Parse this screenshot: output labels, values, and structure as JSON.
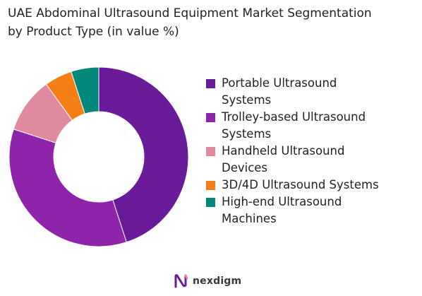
{
  "chart_data": {
    "type": "pie",
    "title_lines": [
      "UAE Abdominal Ultrasound Equipment Market Segmentation",
      "by Product Type (in value %)"
    ],
    "donut": true,
    "legend_position": "right",
    "categories": [
      "Portable Ultrasound Systems",
      "Trolley-based Ultrasound Systems",
      "Handheld Ultrasound Devices",
      "3D/4D Ultrasound Systems",
      "High-end Ultrasound Machines"
    ],
    "legend_lines": [
      [
        "Portable Ultrasound",
        "Systems"
      ],
      [
        "Trolley-based Ultrasound",
        "Systems"
      ],
      [
        "Handheld Ultrasound",
        "Devices"
      ],
      [
        "3D/4D Ultrasound Systems"
      ],
      [
        "High-end Ultrasound",
        "Machines"
      ]
    ],
    "values": [
      45,
      35,
      10,
      5,
      5
    ],
    "colors": [
      "#6a1b9a",
      "#8e24aa",
      "#e08a9f",
      "#f57f17",
      "#00897b"
    ]
  },
  "logo": {
    "text": "nexdigm"
  }
}
